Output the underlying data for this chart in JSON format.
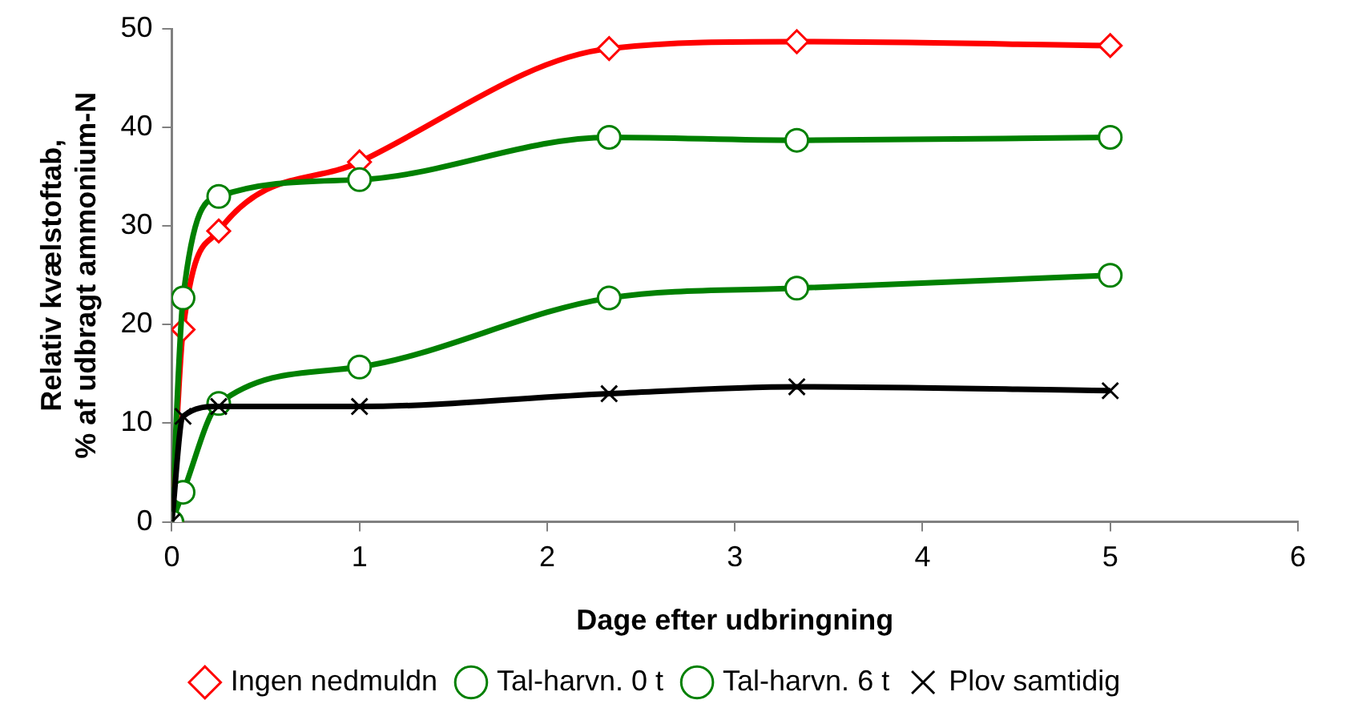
{
  "chart_data": {
    "type": "line",
    "xlabel": "Dage efter udbringning",
    "ylabel": "Relativ kvælstoftab, % af udbragt ammonium-N",
    "x": [
      0,
      0.06,
      0.25,
      1,
      2.33,
      3.33,
      5
    ],
    "xlim": [
      0,
      6
    ],
    "xticks": [
      0,
      1,
      2,
      3,
      4,
      5,
      6
    ],
    "ylim": [
      0,
      50
    ],
    "yticks": [
      0,
      10,
      20,
      30,
      40,
      50
    ],
    "grid": false,
    "legend": "bottom",
    "series": [
      {
        "name": "Ingen nedmuldn",
        "color": "#ff0000",
        "marker": "diamond",
        "values": [
          0,
          19.5,
          29.5,
          36.5,
          48,
          48.7,
          48.3
        ]
      },
      {
        "name": "Tal-harvn. 0 t",
        "color": "#008000",
        "marker": "circle",
        "values": [
          0,
          3,
          12,
          15.7,
          22.7,
          23.7,
          25
        ]
      },
      {
        "name": "Tal-harvn. 6 t",
        "color": "#008000",
        "marker": "circle",
        "values": [
          0,
          22.7,
          33,
          34.7,
          39,
          38.7,
          39
        ]
      },
      {
        "name": "Plov samtidig",
        "color": "#000000",
        "marker": "cross",
        "values": [
          0,
          10.7,
          11.7,
          11.7,
          13,
          13.7,
          13.3
        ]
      }
    ]
  }
}
